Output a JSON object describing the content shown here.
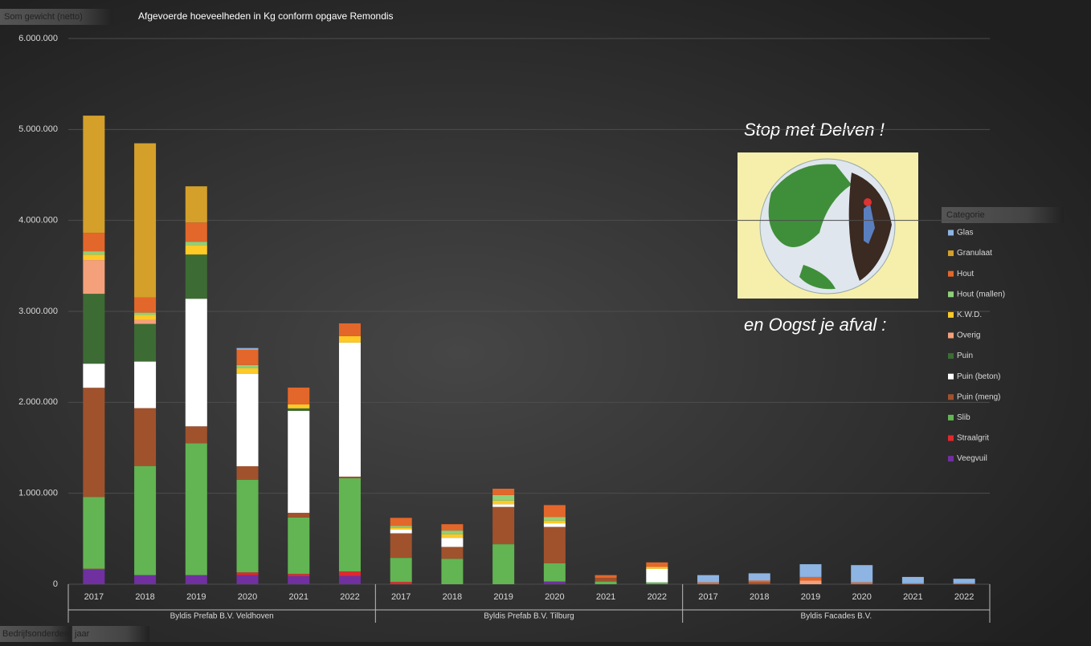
{
  "chart_data": {
    "type": "stacked-bar",
    "title": "Afgevoerde hoeveelheden in Kg conform opgave Remondis",
    "y_field": "Som gewicht (netto)",
    "x_fields": [
      "Bedrijfsonderdeel",
      "jaar"
    ],
    "annotations": [
      "Stop met Delven !",
      "en Oogst je afval :"
    ],
    "legend_title": "Categorie",
    "legend_position": "right",
    "grid": true,
    "categories": [
      "2017",
      "2018",
      "2019",
      "2020",
      "2021",
      "2022",
      "2017",
      "2018",
      "2019",
      "2020",
      "2021",
      "2022",
      "2017",
      "2018",
      "2019",
      "2020",
      "2021",
      "2022"
    ],
    "groups": [
      "Byldis Prefab B.V. Veldhoven",
      "Byldis Prefab B.V. Tilburg",
      "Byldis Facades B.V."
    ],
    "ylim": [
      0,
      6000000
    ],
    "yticks": [
      {
        "value": 0,
        "label": "0"
      },
      {
        "value": 1000000,
        "label": "1.000.000"
      },
      {
        "value": 2000000,
        "label": "2.000.000"
      },
      {
        "value": 3000000,
        "label": "3.000.000"
      },
      {
        "value": 4000000,
        "label": "4.000.000"
      },
      {
        "value": 5000000,
        "label": "5.000.000"
      },
      {
        "value": 6000000,
        "label": "6.000.000"
      }
    ],
    "series": [
      {
        "name": "Glas",
        "color": "#8db4e2",
        "values": [
          0,
          0,
          0,
          20000,
          0,
          0,
          0,
          0,
          0,
          0,
          0,
          0,
          80000,
          80000,
          140000,
          190000,
          70000,
          50000
        ]
      },
      {
        "name": "Granulaat",
        "color": "#d4a02a",
        "values": [
          1288000,
          1694000,
          398000,
          0,
          0,
          0,
          0,
          0,
          0,
          0,
          0,
          0,
          0,
          0,
          0,
          0,
          0,
          0
        ]
      },
      {
        "name": "Hout",
        "color": "#e3672a",
        "values": [
          203000,
          168000,
          211000,
          167000,
          185000,
          141000,
          90000,
          70000,
          70000,
          130000,
          30000,
          50000,
          20000,
          20000,
          40000,
          20000,
          10000,
          10000
        ]
      },
      {
        "name": "Hout (mallen)",
        "color": "#8fd07a",
        "values": [
          36000,
          26000,
          36000,
          36000,
          0,
          0,
          20000,
          40000,
          60000,
          40000,
          0,
          0,
          0,
          0,
          0,
          0,
          0,
          0
        ]
      },
      {
        "name": "K.W.D.",
        "color": "#ffc926",
        "values": [
          61000,
          53000,
          105000,
          62000,
          44000,
          70000,
          20000,
          40000,
          40000,
          30000,
          0,
          20000,
          0,
          0,
          0,
          0,
          0,
          0
        ]
      },
      {
        "name": "Overig",
        "color": "#f4a07a",
        "values": [
          371000,
          45000,
          0,
          0,
          0,
          0,
          0,
          0,
          0,
          0,
          0,
          0,
          0,
          0,
          40000,
          0,
          0,
          0
        ]
      },
      {
        "name": "Puin",
        "color": "#3d6b34",
        "values": [
          768000,
          414000,
          486000,
          0,
          27000,
          0,
          0,
          0,
          0,
          0,
          0,
          0,
          0,
          0,
          0,
          0,
          0,
          0
        ]
      },
      {
        "name": "Puin (beton)",
        "color": "#ffffff",
        "values": [
          265000,
          512000,
          1403000,
          1015000,
          1121000,
          1474000,
          40000,
          100000,
          30000,
          40000,
          0,
          150000,
          0,
          0,
          0,
          0,
          0,
          0
        ]
      },
      {
        "name": "Puin (meng)",
        "color": "#a0522d",
        "values": [
          1200000,
          636000,
          186000,
          150000,
          52000,
          18000,
          270000,
          130000,
          410000,
          400000,
          40000,
          0,
          0,
          20000,
          0,
          0,
          0,
          0
        ]
      },
      {
        "name": "Slib",
        "color": "#62b552",
        "values": [
          790000,
          1200000,
          1450000,
          1017000,
          620000,
          1025000,
          265000,
          280000,
          440000,
          200000,
          30000,
          20000,
          0,
          0,
          0,
          0,
          0,
          0
        ]
      },
      {
        "name": "Straalgrit",
        "color": "#e0282e",
        "values": [
          10000,
          0,
          0,
          30000,
          25000,
          50000,
          25000,
          0,
          0,
          0,
          0,
          0,
          0,
          0,
          0,
          0,
          0,
          0
        ]
      },
      {
        "name": "Veegvuil",
        "color": "#7030a0",
        "values": [
          160000,
          100000,
          100000,
          100000,
          88000,
          90000,
          0,
          0,
          0,
          30000,
          0,
          0,
          0,
          0,
          0,
          0,
          0,
          0
        ]
      }
    ]
  }
}
